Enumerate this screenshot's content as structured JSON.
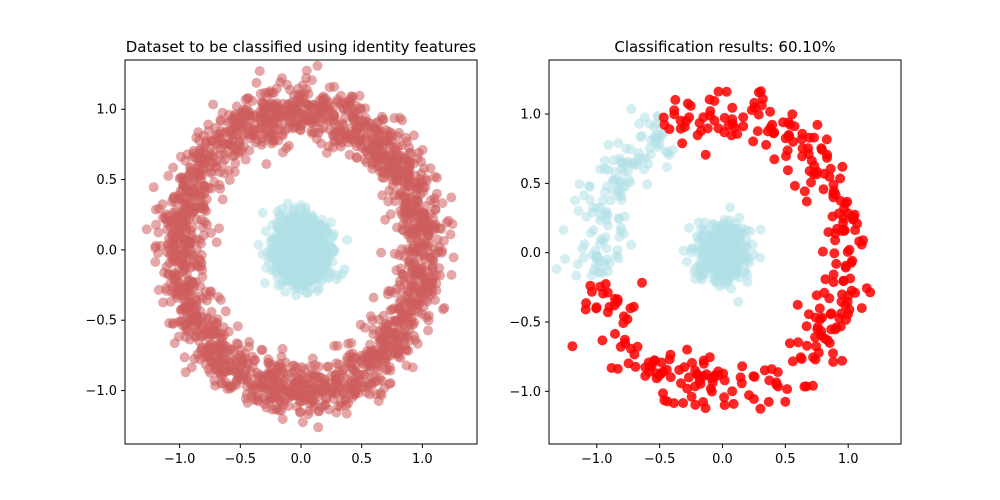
{
  "colors": {
    "inner": "#b0e0e6",
    "outer_left": "#cd5c5c",
    "outer_right": "#ff0000",
    "axes": "#000000",
    "background": "#ffffff"
  },
  "chart_data": [
    {
      "type": "scatter",
      "title": "Dataset to be classified using identity features",
      "xlabel": "",
      "ylabel": "",
      "xlim": [
        -1.45,
        1.45
      ],
      "ylim": [
        -1.38,
        1.35
      ],
      "xticks": [
        -1.0,
        -0.5,
        0.0,
        0.5,
        1.0
      ],
      "xtick_labels": [
        "−1.0",
        "−0.5",
        "0.0",
        "0.5",
        "1.0"
      ],
      "yticks": [
        -1.0,
        -0.5,
        0.0,
        0.5,
        1.0
      ],
      "ytick_labels": [
        "−1.0",
        "−0.5",
        "0.0",
        "0.5",
        "1.0"
      ],
      "grid": false,
      "series": [
        {
          "class": "inner",
          "shape": "filled disk",
          "center": [
            0.0,
            0.0
          ],
          "approx_radius_spread": 0.2,
          "n_points_approx": 2000,
          "alpha": 0.55,
          "color_key": "inner"
        },
        {
          "class": "outer",
          "shape": "ring",
          "center": [
            0.0,
            0.0
          ],
          "mean_radius": 1.0,
          "radius_spread": 0.1,
          "n_points_approx": 2000,
          "alpha": 0.55,
          "color_key": "outer_left"
        }
      ]
    },
    {
      "type": "scatter",
      "title": "Classification results: 60.10%",
      "xlabel": "",
      "ylabel": "",
      "xlim": [
        -1.38,
        1.42
      ],
      "ylim": [
        -1.38,
        1.39
      ],
      "xticks": [
        -1.0,
        -0.5,
        0.0,
        0.5,
        1.0
      ],
      "xtick_labels": [
        "−1.0",
        "−0.5",
        "0.0",
        "0.5",
        "1.0"
      ],
      "yticks": [
        -1.0,
        -0.5,
        0.0,
        0.5,
        1.0
      ],
      "ytick_labels": [
        "−1.0",
        "−0.5",
        "0.0",
        "0.5",
        "1.0"
      ],
      "grid": false,
      "accuracy_percent": 60.1,
      "series": [
        {
          "class": "predicted inner",
          "shape": "filled disk plus misclassified ring arc (left side)",
          "center": [
            0.0,
            0.0
          ],
          "approx_radius_spread": 0.2,
          "n_points_approx": 500,
          "alpha": 0.55,
          "color_key": "inner"
        },
        {
          "class": "predicted outer",
          "shape": "ring (excluding upper-left arc)",
          "center": [
            0.0,
            0.0
          ],
          "mean_radius": 1.0,
          "radius_spread": 0.1,
          "n_points_approx": 400,
          "alpha": 0.85,
          "color_key": "outer_right"
        }
      ]
    }
  ]
}
